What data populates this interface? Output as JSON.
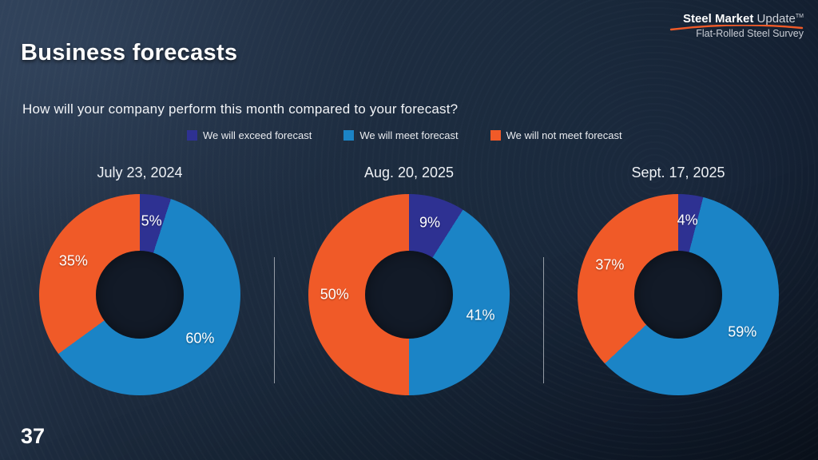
{
  "slide": {
    "title": "Business forecasts",
    "question": "How will your company perform this month compared to your forecast?",
    "page_number": "37"
  },
  "logo": {
    "brand_bold": "Steel Market",
    "brand_light": "Update",
    "tm": "TM",
    "tagline": "Flat-Rolled Steel Survey",
    "swoosh_color": "#f05a28"
  },
  "legend": [
    {
      "label": "We will exceed forecast",
      "color": "#2e3192"
    },
    {
      "label": "We will meet forecast",
      "color": "#1b84c6"
    },
    {
      "label": "We will not meet forecast",
      "color": "#f05a28"
    }
  ],
  "chart_data": [
    {
      "type": "pie",
      "donut": true,
      "title": "July 23, 2024",
      "categories": [
        "We will exceed forecast",
        "We will meet forecast",
        "We will not meet forecast"
      ],
      "values": [
        5,
        60,
        35
      ],
      "labels": [
        "5%",
        "60%",
        "35%"
      ],
      "colors": [
        "#2e3192",
        "#1b84c6",
        "#f05a28"
      ],
      "start_angle_deg": 0,
      "direction": "clockwise"
    },
    {
      "type": "pie",
      "donut": true,
      "title": "Aug. 20, 2025",
      "categories": [
        "We will exceed forecast",
        "We will meet forecast",
        "We will not meet forecast"
      ],
      "values": [
        9,
        41,
        50
      ],
      "labels": [
        "9%",
        "41%",
        "50%"
      ],
      "colors": [
        "#2e3192",
        "#1b84c6",
        "#f05a28"
      ],
      "start_angle_deg": 0,
      "direction": "clockwise"
    },
    {
      "type": "pie",
      "donut": true,
      "title": "Sept. 17, 2025",
      "categories": [
        "We will exceed forecast",
        "We will meet forecast",
        "We will not meet forecast"
      ],
      "values": [
        4,
        59,
        37
      ],
      "labels": [
        "4%",
        "59%",
        "37%"
      ],
      "colors": [
        "#2e3192",
        "#1b84c6",
        "#f05a28"
      ],
      "start_angle_deg": 0,
      "direction": "clockwise"
    }
  ]
}
